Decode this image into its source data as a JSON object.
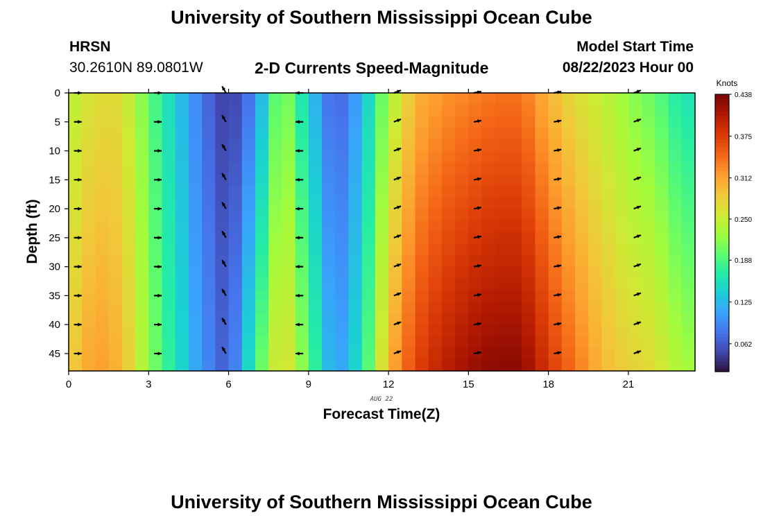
{
  "header": {
    "title": "University of Southern Mississippi Ocean Cube",
    "station": "HRSN",
    "coords": "30.2610N  89.0801W",
    "subtitle": "2-D Currents Speed-Magnitude",
    "model_label": "Model Start Time",
    "model_time": "08/22/2023 Hour 00"
  },
  "footer": {
    "title": "University of Southern Mississippi Ocean Cube"
  },
  "colors": {
    "colormap": [
      "#30123b",
      "#4145ab",
      "#4675ed",
      "#39a2fc",
      "#1bcfd4",
      "#24eca6",
      "#61fc6c",
      "#a4fc3b",
      "#d1e834",
      "#f3c63a",
      "#fe9b2d",
      "#f36315",
      "#d93806",
      "#b11901",
      "#7a0403"
    ],
    "arrow": "#000000",
    "frame": "#000000"
  },
  "chart_data": {
    "type": "heatmap",
    "title": "2-D Currents Speed-Magnitude",
    "xlabel": "Forecast Time(Z)",
    "ylabel": "Depth (ft)",
    "date_label": "AUG 22",
    "xlim": [
      0,
      23.5
    ],
    "ylim": [
      0,
      48
    ],
    "x_ticks": [
      0,
      3,
      6,
      9,
      12,
      15,
      18,
      21
    ],
    "x_tick_labels": [
      "0",
      "3",
      "6",
      "9",
      "12",
      "15",
      "18",
      "21"
    ],
    "y_ticks": [
      0,
      5,
      10,
      15,
      20,
      25,
      30,
      35,
      40,
      45
    ],
    "y_tick_labels": [
      "0",
      "5",
      "10",
      "15",
      "20",
      "25",
      "30",
      "35",
      "40",
      "45"
    ],
    "colorbar": {
      "label": "Knots",
      "range": [
        0.02,
        0.438
      ],
      "ticks": [
        0.062,
        0.125,
        0.188,
        0.25,
        0.312,
        0.375,
        0.438
      ],
      "tick_labels": [
        "0.062",
        "0.125",
        "0.188",
        "0.250",
        "0.312",
        "0.375",
        "0.438"
      ]
    },
    "speed_profile_hours": [
      0,
      1,
      2,
      3,
      4,
      5,
      6,
      7,
      8,
      9,
      10,
      11,
      12,
      13,
      14,
      15,
      16,
      17,
      18,
      19,
      20,
      21,
      22,
      23
    ],
    "speed_profile_surface_kt": [
      0.24,
      0.27,
      0.27,
      0.2,
      0.14,
      0.08,
      0.04,
      0.09,
      0.23,
      0.14,
      0.06,
      0.12,
      0.23,
      0.3,
      0.32,
      0.33,
      0.34,
      0.34,
      0.3,
      0.27,
      0.25,
      0.22,
      0.2,
      0.16
    ],
    "speed_profile_bottom_kt": [
      0.28,
      0.32,
      0.3,
      0.22,
      0.16,
      0.1,
      0.06,
      0.18,
      0.28,
      0.2,
      0.1,
      0.16,
      0.3,
      0.37,
      0.4,
      0.42,
      0.43,
      0.43,
      0.38,
      0.34,
      0.3,
      0.28,
      0.27,
      0.23
    ],
    "arrows": {
      "hours": [
        0.2,
        3.2,
        5.9,
        8.8,
        12.2,
        15.2,
        18.2,
        21.2
      ],
      "depths": [
        0,
        5,
        10,
        15,
        20,
        25,
        30,
        35,
        40,
        45
      ],
      "direction_deg": [
        0,
        0,
        120,
        180,
        20,
        10,
        10,
        20
      ]
    }
  }
}
